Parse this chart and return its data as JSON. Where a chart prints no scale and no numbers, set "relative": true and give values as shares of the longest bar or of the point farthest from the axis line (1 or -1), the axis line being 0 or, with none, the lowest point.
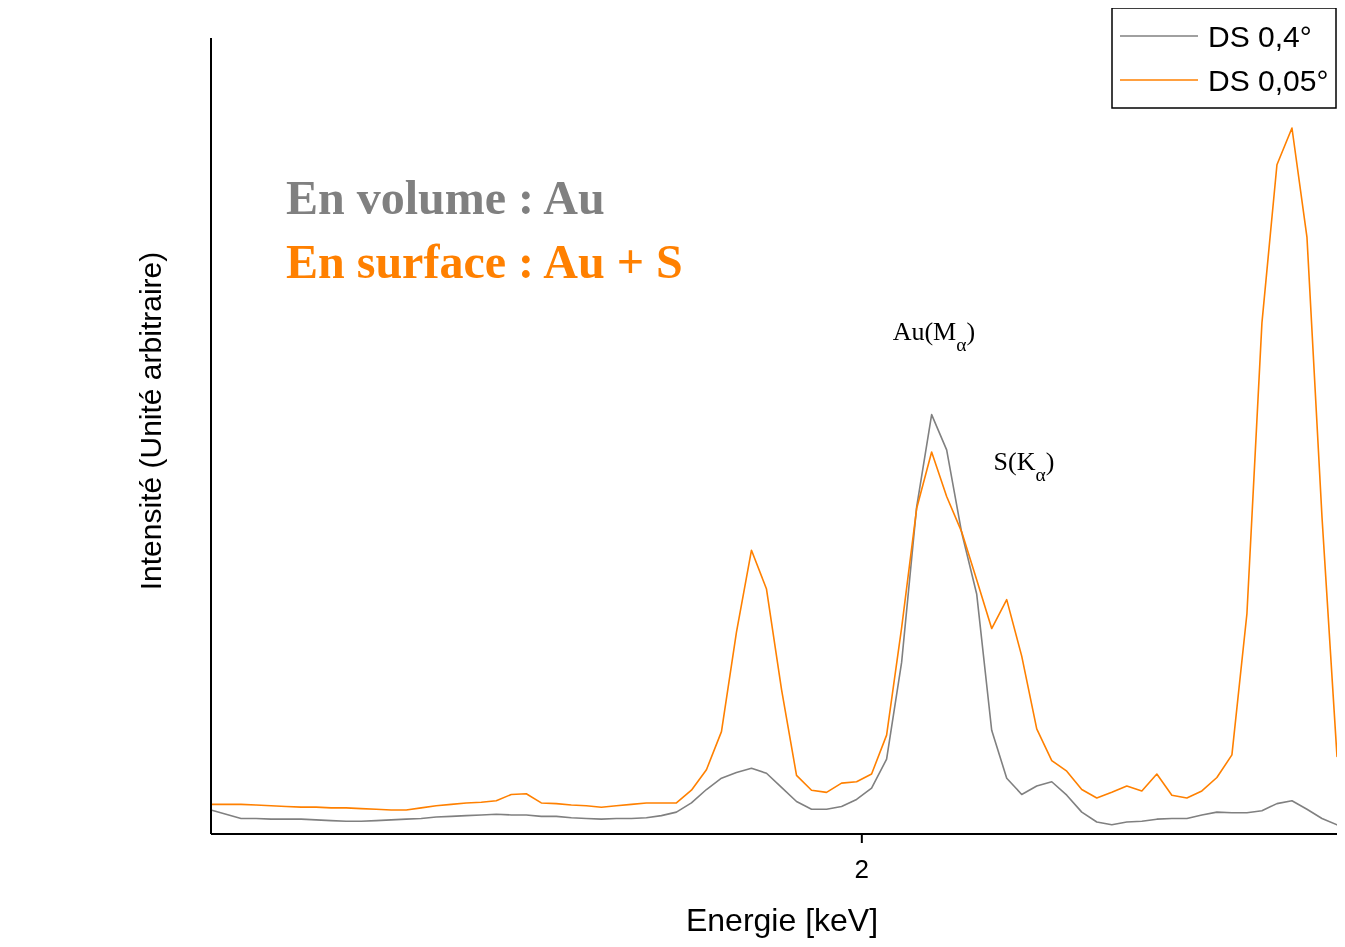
{
  "chart_data": {
    "type": "line",
    "xlabel": "Energie [keV]",
    "ylabel": "Intensité (Unité arbitraire)",
    "relative": true,
    "legend": "top right",
    "annotations": [
      "En volume : Au",
      "En surface : Au + S",
      "Au(M$_{α}$)",
      "S(K$_{α}$)",
      "2"
    ],
    "categories": [
      null,
      null,
      null,
      null,
      null,
      null,
      null,
      null,
      null,
      null,
      null,
      null,
      null,
      null,
      null,
      null,
      null,
      null,
      null,
      null,
      null,
      null,
      null,
      null,
      null,
      null,
      null,
      null,
      null,
      null,
      null,
      null,
      null,
      null,
      null,
      null,
      null,
      null,
      null,
      null,
      null,
      null,
      null,
      null,
      null,
      null,
      null,
      null,
      null,
      null,
      null,
      null,
      null,
      null,
      null,
      null,
      null,
      null,
      null,
      null,
      null,
      null,
      null,
      null,
      null,
      null,
      null,
      null,
      null,
      null,
      null,
      null,
      null,
      null,
      null,
      null
    ],
    "series": [
      {
        "name": "DS 0,4°",
        "color": "#808080",
        "values": [
          0.034,
          0.028,
          0.022,
          0.022,
          0.021,
          0.021,
          0.021,
          0.02,
          0.019,
          0.018,
          0.018,
          0.019,
          0.02,
          0.021,
          0.022,
          0.024,
          0.025,
          0.026,
          0.027,
          0.028,
          0.027,
          0.027,
          0.025,
          0.025,
          0.023,
          0.022,
          0.021,
          0.022,
          0.022,
          0.023,
          0.026,
          0.031,
          0.044,
          0.063,
          0.079,
          0.087,
          0.093,
          0.086,
          0.066,
          0.046,
          0.035,
          0.035,
          0.039,
          0.049,
          0.065,
          0.106,
          0.243,
          0.463,
          0.594,
          0.544,
          0.427,
          0.34,
          0.147,
          0.079,
          0.056,
          0.068,
          0.074,
          0.055,
          0.031,
          0.017,
          0.013,
          0.017,
          0.018,
          0.021,
          0.022,
          0.022,
          0.027,
          0.031,
          0.03,
          0.03,
          0.033,
          0.043,
          0.047,
          0.035,
          0.022,
          0.013
        ]
      },
      {
        "name": "DS 0,05°",
        "color": "#ff8000",
        "values": [
          0.042,
          0.042,
          0.042,
          0.041,
          0.04,
          0.039,
          0.038,
          0.038,
          0.037,
          0.037,
          0.036,
          0.035,
          0.034,
          0.034,
          0.037,
          0.04,
          0.042,
          0.044,
          0.045,
          0.047,
          0.056,
          0.057,
          0.044,
          0.043,
          0.041,
          0.04,
          0.038,
          0.04,
          0.042,
          0.044,
          0.044,
          0.044,
          0.062,
          0.091,
          0.145,
          0.286,
          0.402,
          0.347,
          0.205,
          0.083,
          0.062,
          0.059,
          0.072,
          0.074,
          0.085,
          0.14,
          0.292,
          0.461,
          0.541,
          0.478,
          0.428,
          0.36,
          0.291,
          0.332,
          0.252,
          0.149,
          0.104,
          0.089,
          0.063,
          0.051,
          0.059,
          0.068,
          0.061,
          0.085,
          0.055,
          0.051,
          0.061,
          0.08,
          0.112,
          0.312,
          0.724,
          0.948,
          1,
          0.845,
          0.449,
          0.11
        ]
      }
    ]
  }
}
